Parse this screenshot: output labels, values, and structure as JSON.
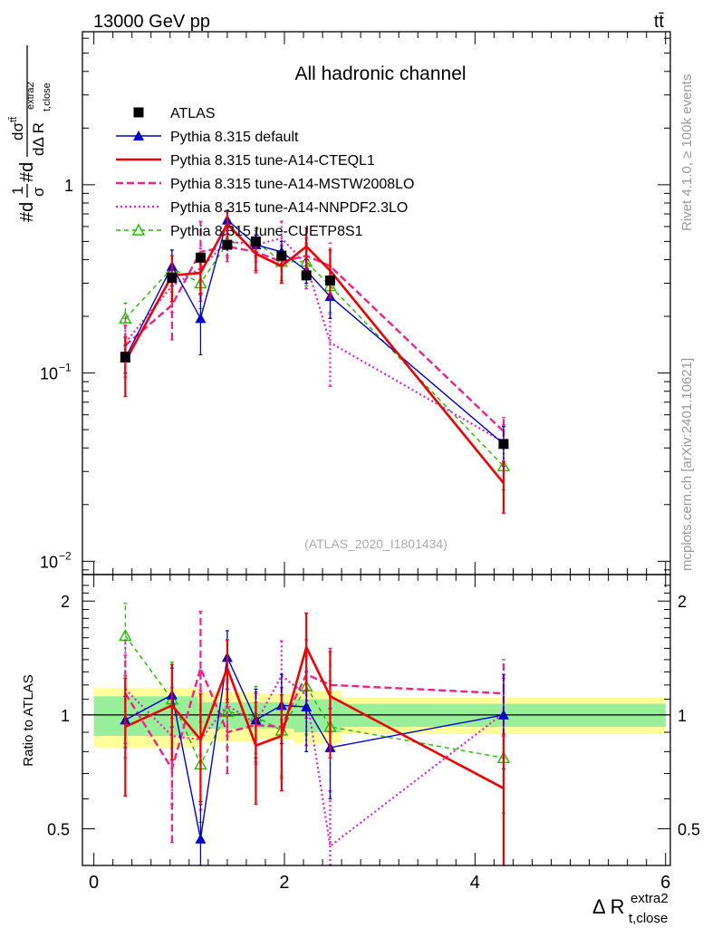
{
  "header": {
    "left": "13000 GeV pp",
    "right": "tt̄"
  },
  "side_labels": {
    "rivet": "Rivet 4.1.0, ≥ 100k events",
    "mcplots": "mcplots.cern.ch [arXiv:2401.10621]"
  },
  "colors": {
    "atlas": "#000000",
    "default": "#0000cc",
    "cteql1": "#ee0000",
    "mstw": "#ee2288",
    "nnpdf": "#dd22cc",
    "cuetp8s1": "#22bb00",
    "band_inner": "#99ee99",
    "band_outer": "#ffff99"
  },
  "chart_data": [
    {
      "type": "line",
      "title": "All hadronic channel",
      "analysis_id": "(ATLAS_2020_I1801434)",
      "xlabel_main": "Δ R",
      "xlabel_sup": "extra2",
      "xlabel_sub": "t,close",
      "ylabel": "#d1/σ#d dσ^tt/dΔ R_{t,close}^{extra2}",
      "ylabel_parts": {
        "prefix": "#d",
        "frac1_num": "1",
        "frac1_den": "σ",
        "middle": "#d",
        "frac2_num": "dσ",
        "frac2_num_sup": "tt̄",
        "frac2_den": "dΔ R",
        "frac2_den_sub": "t,close",
        "frac2_den_sup": "extra2"
      },
      "yscale": "log",
      "ylim": [
        0.0085,
        6.5
      ],
      "xlim": [
        -0.12,
        6.05
      ],
      "yticks": [
        {
          "value": 0.01,
          "label": "10",
          "exp": "−2"
        },
        {
          "value": 0.1,
          "label": "10",
          "exp": "−1"
        },
        {
          "value": 1,
          "label": "1",
          "exp": ""
        }
      ],
      "legend": [
        {
          "label": "ATLAS",
          "key": "atlas"
        },
        {
          "label": "Pythia 8.315 default",
          "key": "default"
        },
        {
          "label": "Pythia 8.315 tune-A14-CTEQL1",
          "key": "cteql1"
        },
        {
          "label": "Pythia 8.315 tune-A14-MSTW2008LO",
          "key": "mstw"
        },
        {
          "label": "Pythia 8.315 tune-A14-NNPDF2.3LO",
          "key": "nnpdf"
        },
        {
          "label": "Pythia 8.315 tune-CUETP8S1",
          "key": "cuetp8s1"
        }
      ],
      "data": {
        "name": "ATLAS",
        "x": [
          0.33,
          0.82,
          1.12,
          1.4,
          1.7,
          1.97,
          2.23,
          2.48,
          4.3
        ],
        "y": [
          0.122,
          0.32,
          0.41,
          0.48,
          0.5,
          0.42,
          0.33,
          0.31,
          0.042
        ]
      },
      "series": [
        {
          "name": "Pythia 8.315 default",
          "key": "default",
          "y": [
            0.12,
            0.37,
            0.195,
            0.65,
            0.48,
            0.44,
            0.35,
            0.255,
            0.042
          ],
          "err": [
            0.02,
            0.08,
            0.07,
            0.08,
            0.06,
            0.06,
            0.05,
            0.06,
            0.01
          ]
        },
        {
          "name": "Pythia 8.315 tune-A14-CTEQL1",
          "key": "cteql1",
          "y": [
            0.115,
            0.33,
            0.34,
            0.62,
            0.43,
            0.37,
            0.47,
            0.35,
            0.026
          ],
          "err": [
            0.04,
            0.09,
            0.08,
            0.1,
            0.08,
            0.07,
            0.12,
            0.1,
            0.008
          ]
        },
        {
          "name": "Pythia 8.315 tune-A14-MSTW2008LO",
          "key": "mstw",
          "y": [
            0.14,
            0.23,
            0.44,
            0.47,
            0.44,
            0.39,
            0.42,
            0.37,
            0.049
          ],
          "err": [
            0.04,
            0.08,
            0.2,
            0.08,
            0.1,
            0.09,
            0.1,
            0.12,
            0.009
          ]
        },
        {
          "name": "Pythia 8.315 tune-A14-NNPDF2.3LO",
          "key": "nnpdf",
          "y": [
            0.145,
            0.29,
            0.36,
            0.5,
            0.48,
            0.52,
            0.38,
            0.145,
            0.043
          ],
          "err": [
            0.05,
            0.08,
            0.1,
            0.08,
            0.09,
            0.12,
            0.1,
            0.06,
            0.01
          ]
        },
        {
          "name": "Pythia 8.315 tune-CUETP8S1",
          "key": "cuetp8s1",
          "y": [
            0.195,
            0.36,
            0.3,
            0.49,
            0.5,
            0.39,
            0.39,
            0.29,
            0.032
          ],
          "err": [
            0.04,
            0.09,
            0.08,
            0.08,
            0.09,
            0.08,
            0.1,
            0.08,
            0.008
          ]
        }
      ]
    },
    {
      "type": "line",
      "title": "",
      "ylabel": "Ratio to ATLAS",
      "yscale": "log",
      "ylim": [
        0.4,
        2.35
      ],
      "xlim": [
        -0.12,
        6.05
      ],
      "xticks": [
        0,
        2,
        4,
        6
      ],
      "yticks": [
        0.5,
        1,
        2
      ],
      "bands": {
        "x_edges": [
          0,
          1.1,
          1.7,
          2.1,
          2.6,
          6.0
        ],
        "inner": [
          [
            0.88,
            1.12
          ],
          [
            0.92,
            1.08
          ],
          [
            0.92,
            1.08
          ],
          [
            0.9,
            1.1
          ],
          [
            0.93,
            1.07
          ]
        ],
        "outer": [
          [
            0.82,
            1.18
          ],
          [
            0.85,
            1.15
          ],
          [
            0.86,
            1.14
          ],
          [
            0.84,
            1.16
          ],
          [
            0.89,
            1.11
          ]
        ]
      },
      "x": [
        0.33,
        0.82,
        1.12,
        1.4,
        1.7,
        1.97,
        2.23,
        2.48,
        4.3
      ],
      "series": [
        {
          "name": "Pythia 8.315 default",
          "key": "default",
          "y": [
            0.97,
            1.13,
            0.47,
            1.42,
            0.97,
            1.06,
            1.05,
            0.82,
            1.0
          ],
          "err": [
            0.15,
            0.2,
            0.12,
            0.25,
            0.2,
            0.22,
            0.25,
            0.22,
            0.28
          ]
        },
        {
          "name": "Pythia 8.315 tune-A14-CTEQL1",
          "key": "cteql1",
          "y": [
            0.93,
            1.06,
            0.86,
            1.33,
            0.83,
            0.88,
            1.51,
            1.12,
            0.64
          ],
          "err": [
            0.32,
            0.3,
            0.28,
            0.25,
            0.25,
            0.25,
            0.35,
            0.35,
            0.25
          ]
        },
        {
          "name": "Pythia 8.315 tune-A14-MSTW2008LO",
          "key": "mstw",
          "y": [
            1.14,
            0.72,
            1.33,
            0.9,
            0.94,
            0.93,
            1.28,
            1.2,
            1.14
          ],
          "err": [
            0.3,
            0.26,
            0.55,
            0.2,
            0.2,
            0.25,
            0.3,
            0.3,
            0.26
          ]
        },
        {
          "name": "Pythia 8.315 tune-A14-NNPDF2.3LO",
          "key": "nnpdf",
          "y": [
            1.17,
            0.88,
            0.86,
            1.06,
            0.95,
            1.27,
            1.13,
            0.45,
            1.01
          ],
          "err": [
            0.4,
            0.3,
            0.3,
            0.18,
            0.2,
            0.3,
            0.3,
            0.18,
            0.24
          ]
        },
        {
          "name": "Pythia 8.315 tune-CUETP8S1",
          "key": "cuetp8s1",
          "y": [
            1.62,
            1.1,
            0.74,
            1.02,
            0.99,
            0.91,
            1.19,
            0.93,
            0.77
          ],
          "err": [
            0.35,
            0.28,
            0.22,
            0.2,
            0.2,
            0.22,
            0.3,
            0.3,
            0.22
          ]
        }
      ]
    }
  ]
}
